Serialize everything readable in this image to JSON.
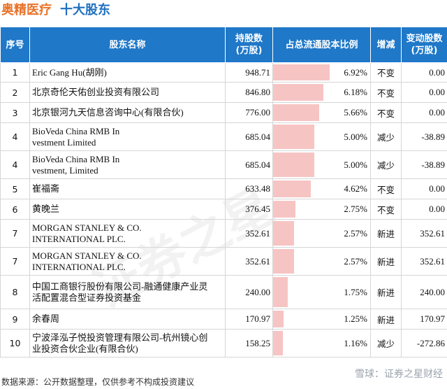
{
  "header": {
    "company": "奥精医疗",
    "subtitle": "十大股东"
  },
  "table": {
    "columns": [
      "序号",
      "股东名称",
      "持股数\n(万股)",
      "占总流通股本比例",
      "增减",
      "变动股数\n(万股)"
    ],
    "rows": [
      {
        "rank": "1",
        "name": "Eric Gang Hu(胡刚)",
        "holding": "948.71",
        "pct": "6.92%",
        "pct_value": 6.92,
        "change": "不变",
        "delta": "0.00",
        "change_type": "same"
      },
      {
        "rank": "2",
        "name": "北京奇伦天佑创业投资有限公司",
        "holding": "846.80",
        "pct": "6.18%",
        "pct_value": 6.18,
        "change": "不变",
        "delta": "0.00",
        "change_type": "same"
      },
      {
        "rank": "3",
        "name": "北京银河九天信息咨询中心(有限合伙)",
        "holding": "776.00",
        "pct": "5.66%",
        "pct_value": 5.66,
        "change": "不变",
        "delta": "0.00",
        "change_type": "same"
      },
      {
        "rank": "4",
        "name": "BioVeda China RMB In\nvestment Limited",
        "holding": "685.04",
        "pct": "5.00%",
        "pct_value": 5.0,
        "change": "减少",
        "delta": "-38.89",
        "change_type": "down"
      },
      {
        "rank": "4",
        "name": "BioVeda China RMB In\nvestment, Limited",
        "holding": "685.04",
        "pct": "5.00%",
        "pct_value": 5.0,
        "change": "减少",
        "delta": "-38.89",
        "change_type": "down"
      },
      {
        "rank": "5",
        "name": "崔福斋",
        "holding": "633.48",
        "pct": "4.62%",
        "pct_value": 4.62,
        "change": "不变",
        "delta": "0.00",
        "change_type": "same"
      },
      {
        "rank": "6",
        "name": "黄晚兰",
        "holding": "376.45",
        "pct": "2.75%",
        "pct_value": 2.75,
        "change": "不变",
        "delta": "0.00",
        "change_type": "same"
      },
      {
        "rank": "7",
        "name": "MORGAN STANLEY & CO.\nINTERNATIONAL PLC.",
        "holding": "352.61",
        "pct": "2.57%",
        "pct_value": 2.57,
        "change": "新进",
        "delta": "352.61",
        "change_type": "new"
      },
      {
        "rank": "7",
        "name": "MORGAN STANLEY & CO.\nINTERNATIONAL PLC.",
        "holding": "352.61",
        "pct": "2.57%",
        "pct_value": 2.57,
        "change": "新进",
        "delta": "352.61",
        "change_type": "new"
      },
      {
        "rank": "8",
        "name": "中国工商银行股份有限公司-融通健康产业灵\n活配置混合型证券投资基金",
        "holding": "240.00",
        "pct": "1.75%",
        "pct_value": 1.75,
        "change": "新进",
        "delta": "240.00",
        "change_type": "new"
      },
      {
        "rank": "9",
        "name": "余春周",
        "holding": "170.97",
        "pct": "1.25%",
        "pct_value": 1.25,
        "change": "新进",
        "delta": "170.97",
        "change_type": "new"
      },
      {
        "rank": "10",
        "name": "宁波泽泓子悦投资管理有限公司-杭州镜心创\n业投资合伙企业(有限合伙)",
        "holding": "158.25",
        "pct": "1.16%",
        "pct_value": 1.16,
        "change": "减少",
        "delta": "-272.86",
        "change_type": "down"
      }
    ]
  },
  "footer": {
    "source": "数据来源：公开数据整理，仅供参考不构成投资建议"
  },
  "brand": {
    "text": "雪球：证券之星财经"
  },
  "colors": {
    "header_bg": "#1f78c8",
    "bar": "#f7c4c4",
    "up": "#d62728",
    "down": "#2ca02c",
    "title_company": "#e8732a",
    "title_sub": "#1f6fbf"
  }
}
